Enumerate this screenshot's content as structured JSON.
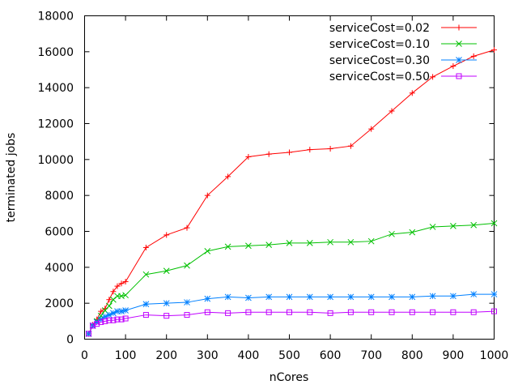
{
  "chart_data": {
    "type": "line",
    "xlabel": "nCores",
    "ylabel": "terminated jobs",
    "xlim": [
      0,
      1000
    ],
    "ylim": [
      0,
      18000
    ],
    "x_ticks": [
      0,
      100,
      200,
      300,
      400,
      500,
      600,
      700,
      800,
      900,
      1000
    ],
    "y_ticks": [
      0,
      2000,
      4000,
      6000,
      8000,
      10000,
      12000,
      14000,
      16000,
      18000
    ],
    "legend_position": "top-right",
    "grid": false,
    "x": [
      10,
      20,
      30,
      40,
      50,
      60,
      70,
      80,
      90,
      100,
      150,
      200,
      250,
      300,
      350,
      400,
      450,
      500,
      550,
      600,
      650,
      700,
      750,
      800,
      850,
      900,
      950,
      1000
    ],
    "series": [
      {
        "name": "serviceCost=0.02",
        "color": "#ff0000",
        "marker": "plus",
        "values": [
          300,
          800,
          1100,
          1550,
          1700,
          2200,
          2650,
          2950,
          3100,
          3200,
          5100,
          5800,
          6200,
          8000,
          9050,
          10150,
          10300,
          10400,
          10550,
          10600,
          10750,
          11700,
          12700,
          13700,
          14600,
          15200,
          15750,
          16100
        ]
      },
      {
        "name": "serviceCost=0.10",
        "color": "#00c000",
        "marker": "x",
        "values": [
          300,
          750,
          1000,
          1300,
          1600,
          1850,
          2200,
          2400,
          2400,
          2450,
          3600,
          3800,
          4100,
          4900,
          5150,
          5200,
          5250,
          5350,
          5350,
          5400,
          5400,
          5450,
          5850,
          5950,
          6250,
          6300,
          6350,
          6450
        ]
      },
      {
        "name": "serviceCost=0.30",
        "color": "#0080ff",
        "marker": "star",
        "values": [
          300,
          750,
          950,
          1100,
          1250,
          1350,
          1450,
          1550,
          1550,
          1600,
          1950,
          2000,
          2050,
          2250,
          2350,
          2300,
          2350,
          2350,
          2350,
          2350,
          2350,
          2350,
          2350,
          2350,
          2400,
          2400,
          2500,
          2500
        ]
      },
      {
        "name": "serviceCost=0.50",
        "color": "#c000ff",
        "marker": "square",
        "values": [
          300,
          750,
          850,
          950,
          1000,
          1050,
          1050,
          1100,
          1100,
          1150,
          1350,
          1300,
          1350,
          1500,
          1450,
          1500,
          1500,
          1500,
          1500,
          1450,
          1500,
          1500,
          1500,
          1500,
          1500,
          1500,
          1500,
          1550
        ]
      }
    ]
  }
}
